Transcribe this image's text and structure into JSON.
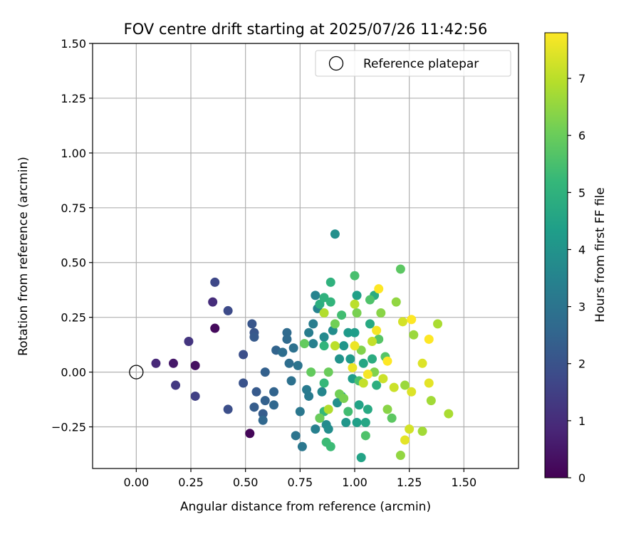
{
  "chart_data": {
    "type": "scatter",
    "title": "FOV centre drift starting at 2025/07/26 11:42:56",
    "xlabel": "Angular distance from reference (arcmin)",
    "ylabel": "Rotation from reference (arcmin)",
    "xlim": [
      -0.2,
      1.75
    ],
    "ylim": [
      -0.44,
      1.5
    ],
    "x_ticks": [
      0.0,
      0.25,
      0.5,
      0.75,
      1.0,
      1.25,
      1.5
    ],
    "x_tick_labels": [
      "0.00",
      "0.25",
      "0.50",
      "0.75",
      "1.00",
      "1.25",
      "1.50"
    ],
    "y_ticks": [
      -0.25,
      0.0,
      0.25,
      0.5,
      0.75,
      1.0,
      1.25,
      1.5
    ],
    "y_tick_labels": [
      "−0.25",
      "0.00",
      "0.25",
      "0.50",
      "0.75",
      "1.00",
      "1.25",
      "1.50"
    ],
    "grid": true,
    "legend": {
      "position": "top-right",
      "entries": [
        "Reference platepar"
      ]
    },
    "reference_point": {
      "name": "Reference platepar",
      "x": 0.0,
      "y": 0.0,
      "marker": "open-circle",
      "color": "#000000"
    },
    "colorbar": {
      "label": "Hours from first FF file",
      "range": [
        0,
        7.8
      ],
      "ticks": [
        0,
        1,
        2,
        3,
        4,
        5,
        6,
        7
      ],
      "tick_labels": [
        "0",
        "1",
        "2",
        "3",
        "4",
        "5",
        "6",
        "7"
      ],
      "colormap": "viridis",
      "stops": [
        "#440154",
        "#482878",
        "#3e4989",
        "#31688e",
        "#26828e",
        "#1f9e89",
        "#35b779",
        "#6ece58",
        "#b5de2b",
        "#fde725"
      ]
    },
    "series": [
      {
        "color_by": "hours",
        "points": [
          {
            "x": 0.52,
            "y": -0.28,
            "c": 0.1
          },
          {
            "x": 0.36,
            "y": 0.2,
            "c": 0.2
          },
          {
            "x": 0.27,
            "y": 0.03,
            "c": 0.3
          },
          {
            "x": 0.17,
            "y": 0.04,
            "c": 0.5
          },
          {
            "x": 0.09,
            "y": 0.04,
            "c": 0.9
          },
          {
            "x": 0.35,
            "y": 0.32,
            "c": 1.0
          },
          {
            "x": 0.24,
            "y": 0.14,
            "c": 1.2
          },
          {
            "x": 0.18,
            "y": -0.06,
            "c": 1.3
          },
          {
            "x": 0.27,
            "y": -0.11,
            "c": 1.5
          },
          {
            "x": 0.36,
            "y": 0.41,
            "c": 1.7
          },
          {
            "x": 0.42,
            "y": 0.28,
            "c": 1.8
          },
          {
            "x": 0.42,
            "y": -0.17,
            "c": 1.9
          },
          {
            "x": 0.49,
            "y": 0.08,
            "c": 1.9
          },
          {
            "x": 0.49,
            "y": -0.05,
            "c": 2.0
          },
          {
            "x": 0.53,
            "y": 0.22,
            "c": 2.1
          },
          {
            "x": 0.54,
            "y": 0.18,
            "c": 2.1
          },
          {
            "x": 0.54,
            "y": 0.16,
            "c": 2.2
          },
          {
            "x": 0.55,
            "y": -0.09,
            "c": 2.2
          },
          {
            "x": 0.54,
            "y": -0.16,
            "c": 2.3
          },
          {
            "x": 0.58,
            "y": -0.19,
            "c": 2.3
          },
          {
            "x": 0.59,
            "y": 0.0,
            "c": 2.4
          },
          {
            "x": 0.59,
            "y": -0.13,
            "c": 2.4
          },
          {
            "x": 0.64,
            "y": 0.1,
            "c": 2.5
          },
          {
            "x": 0.63,
            "y": -0.09,
            "c": 2.5
          },
          {
            "x": 0.63,
            "y": -0.15,
            "c": 2.6
          },
          {
            "x": 0.58,
            "y": -0.22,
            "c": 2.6
          },
          {
            "x": 0.69,
            "y": 0.18,
            "c": 2.7
          },
          {
            "x": 0.69,
            "y": 0.15,
            "c": 2.7
          },
          {
            "x": 0.67,
            "y": 0.09,
            "c": 2.8
          },
          {
            "x": 0.7,
            "y": 0.04,
            "c": 2.8
          },
          {
            "x": 0.71,
            "y": -0.04,
            "c": 2.9
          },
          {
            "x": 0.72,
            "y": 0.11,
            "c": 2.9
          },
          {
            "x": 0.74,
            "y": 0.03,
            "c": 3.0
          },
          {
            "x": 0.73,
            "y": -0.29,
            "c": 3.0
          },
          {
            "x": 0.76,
            "y": -0.34,
            "c": 3.1
          },
          {
            "x": 0.75,
            "y": -0.18,
            "c": 3.1
          },
          {
            "x": 0.78,
            "y": -0.08,
            "c": 3.2
          },
          {
            "x": 0.79,
            "y": -0.11,
            "c": 3.2
          },
          {
            "x": 0.79,
            "y": 0.18,
            "c": 3.3
          },
          {
            "x": 0.81,
            "y": 0.22,
            "c": 3.3
          },
          {
            "x": 0.81,
            "y": 0.13,
            "c": 3.4
          },
          {
            "x": 0.82,
            "y": -0.26,
            "c": 3.4
          },
          {
            "x": 0.82,
            "y": 0.35,
            "c": 3.5
          },
          {
            "x": 0.83,
            "y": 0.29,
            "c": 3.5
          },
          {
            "x": 0.84,
            "y": -0.21,
            "c": 3.6
          },
          {
            "x": 0.85,
            "y": -0.09,
            "c": 3.6
          },
          {
            "x": 0.86,
            "y": 0.16,
            "c": 3.7
          },
          {
            "x": 0.87,
            "y": -0.24,
            "c": 3.7
          },
          {
            "x": 0.88,
            "y": -0.26,
            "c": 3.8
          },
          {
            "x": 0.9,
            "y": 0.19,
            "c": 3.8
          },
          {
            "x": 0.91,
            "y": 0.63,
            "c": 3.9
          },
          {
            "x": 0.92,
            "y": -0.14,
            "c": 3.9
          },
          {
            "x": 0.93,
            "y": 0.06,
            "c": 4.0
          },
          {
            "x": 0.94,
            "y": -0.11,
            "c": 4.0
          },
          {
            "x": 0.95,
            "y": 0.12,
            "c": 4.1
          },
          {
            "x": 0.96,
            "y": -0.23,
            "c": 4.1
          },
          {
            "x": 0.97,
            "y": 0.18,
            "c": 4.2
          },
          {
            "x": 0.98,
            "y": 0.06,
            "c": 4.2
          },
          {
            "x": 0.99,
            "y": -0.03,
            "c": 4.3
          },
          {
            "x": 1.0,
            "y": 0.18,
            "c": 4.3
          },
          {
            "x": 1.01,
            "y": 0.35,
            "c": 4.4
          },
          {
            "x": 1.01,
            "y": -0.23,
            "c": 4.4
          },
          {
            "x": 1.03,
            "y": -0.39,
            "c": 4.5
          },
          {
            "x": 1.02,
            "y": -0.15,
            "c": 4.5
          },
          {
            "x": 1.04,
            "y": 0.04,
            "c": 4.6
          },
          {
            "x": 1.05,
            "y": -0.23,
            "c": 4.6
          },
          {
            "x": 1.06,
            "y": -0.17,
            "c": 4.7
          },
          {
            "x": 1.07,
            "y": 0.22,
            "c": 4.7
          },
          {
            "x": 1.08,
            "y": 0.06,
            "c": 4.8
          },
          {
            "x": 1.09,
            "y": 0.35,
            "c": 4.8
          },
          {
            "x": 1.1,
            "y": -0.06,
            "c": 4.9
          },
          {
            "x": 0.84,
            "y": 0.31,
            "c": 4.9
          },
          {
            "x": 0.86,
            "y": 0.34,
            "c": 5.0
          },
          {
            "x": 0.89,
            "y": 0.41,
            "c": 5.0
          },
          {
            "x": 0.89,
            "y": 0.32,
            "c": 5.1
          },
          {
            "x": 0.86,
            "y": 0.12,
            "c": 5.1
          },
          {
            "x": 0.86,
            "y": -0.05,
            "c": 5.2
          },
          {
            "x": 0.86,
            "y": -0.18,
            "c": 5.2
          },
          {
            "x": 0.87,
            "y": -0.32,
            "c": 5.3
          },
          {
            "x": 0.89,
            "y": -0.34,
            "c": 5.3
          },
          {
            "x": 0.94,
            "y": 0.26,
            "c": 5.4
          },
          {
            "x": 0.97,
            "y": -0.18,
            "c": 5.4
          },
          {
            "x": 1.0,
            "y": 0.44,
            "c": 5.5
          },
          {
            "x": 1.02,
            "y": -0.04,
            "c": 5.5
          },
          {
            "x": 1.05,
            "y": -0.29,
            "c": 5.6
          },
          {
            "x": 1.07,
            "y": 0.33,
            "c": 5.6
          },
          {
            "x": 1.11,
            "y": 0.15,
            "c": 5.7
          },
          {
            "x": 1.14,
            "y": 0.07,
            "c": 5.7
          },
          {
            "x": 1.17,
            "y": -0.21,
            "c": 5.8
          },
          {
            "x": 1.21,
            "y": 0.47,
            "c": 5.8
          },
          {
            "x": 0.77,
            "y": 0.13,
            "c": 5.9
          },
          {
            "x": 0.8,
            "y": 0.0,
            "c": 5.9
          },
          {
            "x": 0.84,
            "y": -0.21,
            "c": 6.0
          },
          {
            "x": 0.88,
            "y": 0.0,
            "c": 6.0
          },
          {
            "x": 0.91,
            "y": 0.22,
            "c": 6.1
          },
          {
            "x": 0.93,
            "y": -0.1,
            "c": 6.1
          },
          {
            "x": 0.95,
            "y": -0.12,
            "c": 6.2
          },
          {
            "x": 1.01,
            "y": 0.27,
            "c": 6.2
          },
          {
            "x": 1.03,
            "y": 0.1,
            "c": 6.3
          },
          {
            "x": 1.09,
            "y": 0.0,
            "c": 6.3
          },
          {
            "x": 1.12,
            "y": 0.27,
            "c": 6.4
          },
          {
            "x": 1.15,
            "y": -0.17,
            "c": 6.4
          },
          {
            "x": 1.19,
            "y": 0.32,
            "c": 6.5
          },
          {
            "x": 1.21,
            "y": -0.38,
            "c": 6.5
          },
          {
            "x": 1.23,
            "y": -0.06,
            "c": 6.6
          },
          {
            "x": 1.27,
            "y": 0.17,
            "c": 6.6
          },
          {
            "x": 1.31,
            "y": -0.27,
            "c": 6.7
          },
          {
            "x": 1.35,
            "y": -0.13,
            "c": 6.7
          },
          {
            "x": 1.38,
            "y": 0.22,
            "c": 6.8
          },
          {
            "x": 1.43,
            "y": -0.19,
            "c": 6.8
          },
          {
            "x": 0.86,
            "y": 0.27,
            "c": 6.9
          },
          {
            "x": 0.88,
            "y": -0.17,
            "c": 6.9
          },
          {
            "x": 0.91,
            "y": 0.12,
            "c": 7.0
          },
          {
            "x": 1.0,
            "y": 0.31,
            "c": 7.0
          },
          {
            "x": 1.04,
            "y": -0.05,
            "c": 7.1
          },
          {
            "x": 1.08,
            "y": 0.14,
            "c": 7.1
          },
          {
            "x": 1.13,
            "y": -0.03,
            "c": 7.2
          },
          {
            "x": 1.18,
            "y": -0.07,
            "c": 7.2
          },
          {
            "x": 1.22,
            "y": 0.23,
            "c": 7.3
          },
          {
            "x": 1.25,
            "y": -0.26,
            "c": 7.3
          },
          {
            "x": 1.26,
            "y": -0.09,
            "c": 7.4
          },
          {
            "x": 1.31,
            "y": 0.04,
            "c": 7.4
          },
          {
            "x": 1.34,
            "y": -0.05,
            "c": 7.5
          },
          {
            "x": 1.23,
            "y": -0.31,
            "c": 7.5
          },
          {
            "x": 0.99,
            "y": 0.02,
            "c": 7.6
          },
          {
            "x": 1.0,
            "y": 0.12,
            "c": 7.6
          },
          {
            "x": 1.06,
            "y": -0.01,
            "c": 7.7
          },
          {
            "x": 1.1,
            "y": 0.19,
            "c": 7.7
          },
          {
            "x": 1.11,
            "y": 0.38,
            "c": 7.8
          },
          {
            "x": 1.15,
            "y": 0.05,
            "c": 7.8
          },
          {
            "x": 1.26,
            "y": 0.24,
            "c": 7.8
          },
          {
            "x": 1.34,
            "y": 0.15,
            "c": 7.8
          }
        ]
      }
    ]
  }
}
